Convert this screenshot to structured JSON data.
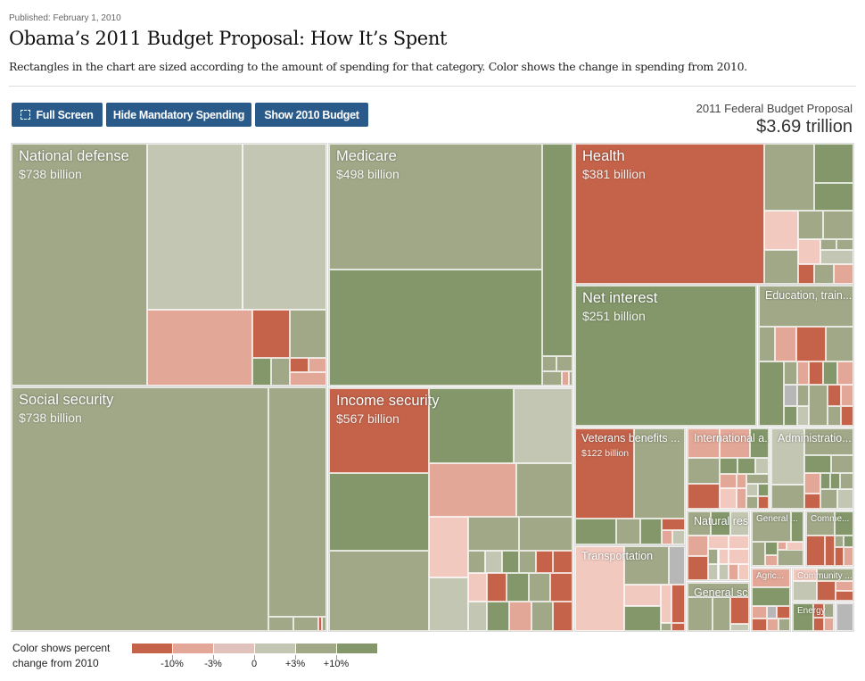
{
  "header": {
    "published": "Published: February 1, 2010",
    "title": "Obama’s 2011 Budget Proposal: How It’s Spent",
    "subtitle": "Rectangles in the chart are sized according to the amount of spending for that category. Color shows the change in spending from 2010."
  },
  "toolbar": {
    "full_screen": "Full Screen",
    "full_screen_icon": "fullscreen-icon",
    "hide_mandatory": "Hide Mandatory Spending",
    "show_2010": "Show 2010 Budget"
  },
  "total": {
    "label": "2011 Federal Budget Proposal",
    "value": "$3.69 trillion"
  },
  "colors": {
    "bins": [
      "#c5634a",
      "#e2a796",
      "#f2c9be",
      "#c3c6b2",
      "#a0a888",
      "#83976a"
    ],
    "no_data": "#b7b7b7",
    "button": "#295a8a"
  },
  "chart_data": {
    "type": "treemap",
    "categories": [
      {
        "name": "National defense",
        "value_label": "$738 billion",
        "value": 738
      },
      {
        "name": "Social security",
        "value_label": "$738 billion",
        "value": 738
      },
      {
        "name": "Medicare",
        "value_label": "$498 billion",
        "value": 498
      },
      {
        "name": "Income security",
        "value_label": "$567 billion",
        "value": 567
      },
      {
        "name": "Health",
        "value_label": "$381 billion",
        "value": 381
      },
      {
        "name": "Net interest",
        "value_label": "$251 billion",
        "value": 251
      },
      {
        "name": "Education, train..."
      },
      {
        "name": "Veterans benefits ...",
        "value_label": "$122 billion",
        "value": 122
      },
      {
        "name": "Transportation"
      },
      {
        "name": "International a..."
      },
      {
        "name": "Administratio..."
      },
      {
        "name": "Natural res..."
      },
      {
        "name": "General sc..."
      },
      {
        "name": "General ..."
      },
      {
        "name": "Comme..."
      },
      {
        "name": "Agric..."
      },
      {
        "name": "Community ..."
      },
      {
        "name": "Energy"
      },
      {
        "name": ""
      }
    ],
    "legend": {
      "title": "Color shows percent change from 2010",
      "title_line1": "Color shows percent",
      "title_line2": "change from 2010",
      "ticks": [
        "-10%",
        "-3%",
        "0",
        "+3%",
        "+10%"
      ]
    }
  }
}
